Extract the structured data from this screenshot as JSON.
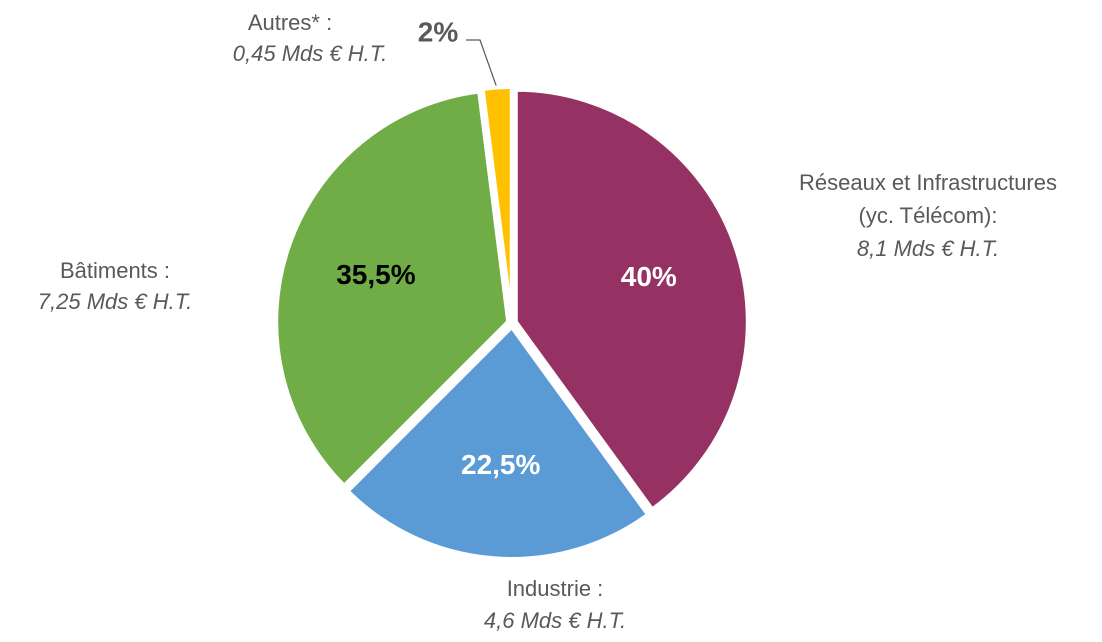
{
  "chart_data": {
    "type": "pie",
    "categories": [
      "Réseaux et Infrastructures (yc. Télécom):",
      "Industrie :",
      "Bâtiments :",
      "Autres* :"
    ],
    "amounts": [
      "8,1 Mds € H.T.",
      "4,6 Mds € H.T.",
      "7,25 Mds € H.T.",
      "0,45 Mds € H.T."
    ],
    "values": [
      40,
      22.5,
      35.5,
      2
    ],
    "value_labels": [
      "40%",
      "22,5%",
      "35,5%",
      "2%"
    ],
    "colors": [
      "#953163",
      "#5b9bd5",
      "#70ad47",
      "#ffc000"
    ],
    "label_colors": [
      "#ffffff",
      "#ffffff",
      "#000000",
      "#595959"
    ]
  }
}
